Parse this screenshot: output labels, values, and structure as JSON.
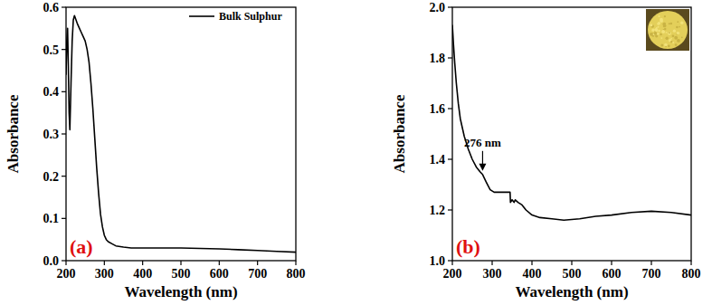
{
  "chart_data": [
    {
      "type": "line",
      "title": "(a)",
      "x_label": "Wavelength (nm)",
      "y_label": "Absorbance",
      "x": [
        200,
        202,
        204,
        206,
        208,
        210,
        213,
        216,
        219,
        222,
        226,
        230,
        235,
        240,
        245,
        250,
        255,
        260,
        265,
        270,
        275,
        280,
        285,
        290,
        295,
        300,
        305,
        310,
        320,
        330,
        350,
        370,
        400,
        450,
        500,
        550,
        600,
        650,
        700,
        750,
        800
      ],
      "series": [
        {
          "name": "Bulk Sulphur",
          "color": "#000000",
          "values": [
            0.44,
            0.52,
            0.55,
            0.46,
            0.35,
            0.31,
            0.42,
            0.52,
            0.57,
            0.58,
            0.57,
            0.56,
            0.55,
            0.54,
            0.53,
            0.52,
            0.5,
            0.47,
            0.42,
            0.36,
            0.29,
            0.22,
            0.16,
            0.11,
            0.08,
            0.06,
            0.05,
            0.045,
            0.04,
            0.035,
            0.032,
            0.03,
            0.03,
            0.03,
            0.03,
            0.029,
            0.028,
            0.026,
            0.024,
            0.022,
            0.02
          ]
        }
      ],
      "xlim": [
        200,
        800
      ],
      "ylim": [
        0,
        0.6
      ],
      "xticks": [
        200,
        300,
        400,
        500,
        600,
        700,
        800
      ],
      "yticks": [
        {
          "value": 0,
          "label": "0.0"
        },
        0.1,
        0.2,
        0.3,
        0.4,
        0.5,
        0.6
      ],
      "legend": "upper right"
    },
    {
      "type": "line",
      "title": "(b)",
      "x_label": "Wavelength (nm)",
      "y_label": "Absorbance",
      "x": [
        200,
        203,
        206,
        210,
        215,
        220,
        230,
        240,
        250,
        260,
        270,
        276,
        285,
        295,
        305,
        315,
        325,
        335,
        345,
        346,
        350,
        355,
        358,
        365,
        375,
        385,
        400,
        420,
        450,
        480,
        520,
        560,
        600,
        650,
        700,
        750,
        800
      ],
      "series": [
        {
          "color": "#000000",
          "values": [
            1.93,
            1.85,
            1.78,
            1.7,
            1.62,
            1.56,
            1.49,
            1.44,
            1.4,
            1.37,
            1.35,
            1.34,
            1.31,
            1.28,
            1.27,
            1.27,
            1.27,
            1.27,
            1.27,
            1.23,
            1.24,
            1.23,
            1.24,
            1.23,
            1.22,
            1.2,
            1.18,
            1.17,
            1.165,
            1.16,
            1.165,
            1.175,
            1.18,
            1.19,
            1.195,
            1.19,
            1.18
          ]
        }
      ],
      "xlim": [
        200,
        800
      ],
      "ylim": [
        1.0,
        2.0
      ],
      "xticks": [
        200,
        300,
        400,
        500,
        600,
        700,
        800
      ],
      "yticks": [
        {
          "value": 1.0,
          "label": "1.0"
        },
        1.2,
        1.4,
        1.6,
        1.8,
        {
          "value": 2.0,
          "label": "2.0"
        }
      ],
      "annotations": [
        {
          "text": "276 nm",
          "x": 276,
          "y": 1.34
        }
      ]
    }
  ]
}
